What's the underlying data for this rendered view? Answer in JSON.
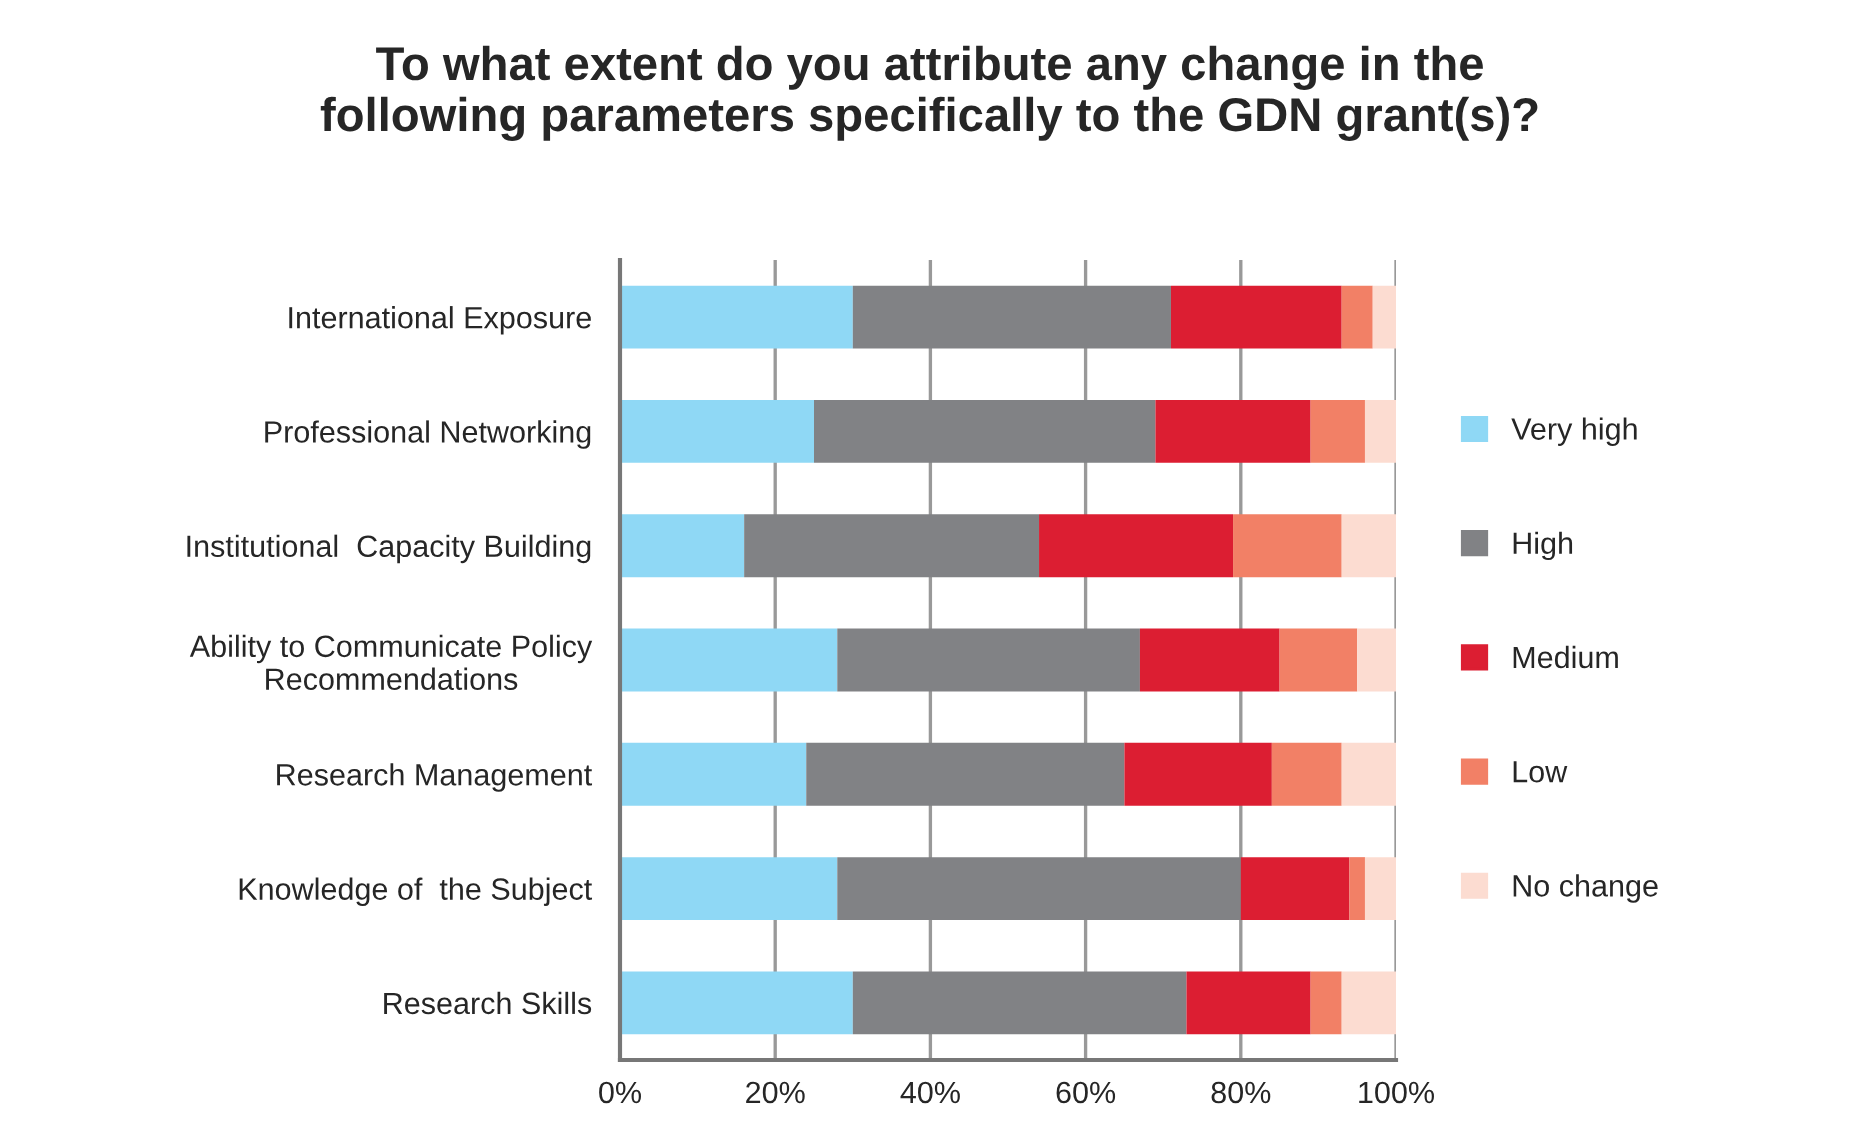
{
  "chart_data": {
    "type": "bar",
    "orientation": "horizontal",
    "stacked": true,
    "title": "To what extent do you attribute any change in the\nfollowing parameters specifically to the GDN grant(s)?",
    "categories": [
      "International Exposure",
      "Professional Networking",
      "Institutional  Capacity Building",
      "Ability to Communicate Policy\nRecommendations",
      "Research Management",
      "Knowledge of  the Subject",
      "Research Skills"
    ],
    "series": [
      {
        "name": "Very high",
        "color": "#8fd8f5",
        "values": [
          30,
          25,
          16,
          28,
          24,
          28,
          30
        ]
      },
      {
        "name": "High",
        "color": "#818285",
        "values": [
          41,
          44,
          38,
          39,
          41,
          52,
          43
        ]
      },
      {
        "name": "Medium",
        "color": "#dc1e32",
        "values": [
          22,
          20,
          25,
          18,
          19,
          14,
          16
        ]
      },
      {
        "name": "Low",
        "color": "#f28066",
        "values": [
          4,
          7,
          14,
          10,
          9,
          2,
          4
        ]
      },
      {
        "name": "No change",
        "color": "#fcdcd1",
        "values": [
          3,
          4,
          7,
          5,
          7,
          4,
          7
        ]
      }
    ],
    "xlim": [
      0,
      100
    ],
    "xticks": [
      {
        "value": 0,
        "label": "0%"
      },
      {
        "value": 20,
        "label": "20%"
      },
      {
        "value": 40,
        "label": "40%"
      },
      {
        "value": 60,
        "label": "60%"
      },
      {
        "value": 80,
        "label": "80%"
      },
      {
        "value": 100,
        "label": "100%"
      }
    ],
    "grid": "x",
    "legend": "right"
  }
}
